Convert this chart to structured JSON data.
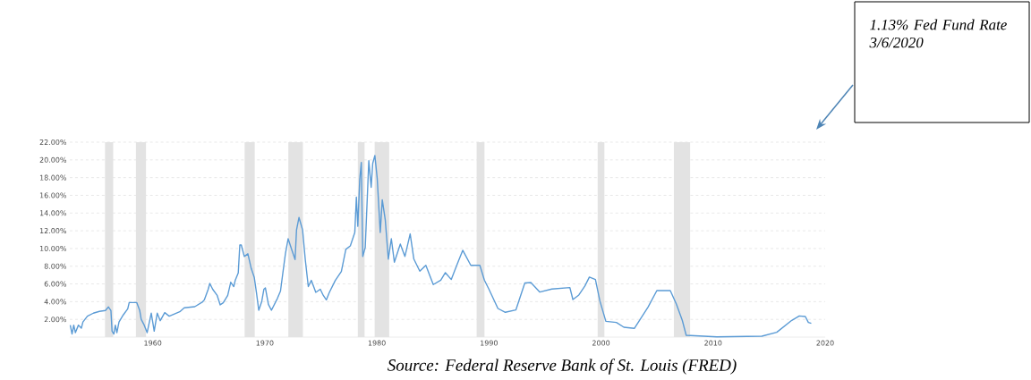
{
  "chart_data": {
    "type": "line",
    "x": [
      1952.64,
      1952.8,
      1952.95,
      1953.1,
      1953.37,
      1953.63,
      1953.77,
      1954.17,
      1954.7,
      1955.24,
      1955.78,
      1956.05,
      1956.27,
      1956.37,
      1956.53,
      1956.66,
      1956.8,
      1956.99,
      1957.37,
      1957.77,
      1957.9,
      1958.57,
      1958.84,
      1958.97,
      1959.24,
      1959.5,
      1959.64,
      1959.87,
      1960.13,
      1960.4,
      1960.67,
      1961.07,
      1961.47,
      1962.41,
      1962.81,
      1963.75,
      1964.42,
      1964.6,
      1964.95,
      1965.09,
      1965.35,
      1965.75,
      1966.02,
      1966.29,
      1966.69,
      1966.96,
      1967.23,
      1967.36,
      1967.63,
      1967.77,
      1967.9,
      1968.17,
      1968.49,
      1968.79,
      1969.06,
      1969.25,
      1969.46,
      1969.73,
      1969.92,
      1970.05,
      1970.32,
      1970.59,
      1971.13,
      1971.4,
      1971.61,
      1971.84,
      1972.08,
      1972.43,
      1972.7,
      1972.83,
      1973.05,
      1973.37,
      1973.61,
      1973.88,
      1974.15,
      1974.55,
      1974.95,
      1975.22,
      1975.49,
      1975.76,
      1976.29,
      1976.83,
      1977.23,
      1977.63,
      1978.03,
      1978.17,
      1978.3,
      1978.47,
      1978.61,
      1978.74,
      1978.96,
      1979.28,
      1979.49,
      1979.63,
      1979.82,
      1980.03,
      1980.3,
      1980.48,
      1980.75,
      1981.02,
      1981.29,
      1981.56,
      1982.09,
      1982.5,
      1982.97,
      1983.3,
      1983.83,
      1984.37,
      1985.03,
      1985.7,
      1986.11,
      1986.64,
      1987.18,
      1987.66,
      1988.38,
      1989.19,
      1989.59,
      1990.0,
      1990.8,
      1991.46,
      1992.4,
      1993.2,
      1993.74,
      1994.54,
      1995.61,
      1997.22,
      1997.49,
      1998.02,
      1998.56,
      1998.96,
      1999.5,
      1999.9,
      2000.43,
      2001.37,
      2002.04,
      2002.97,
      2004.2,
      2004.98,
      2006.18,
      2006.72,
      2007.25,
      2007.6,
      2010.33,
      2014.35,
      2015.68,
      2017.02,
      2017.69,
      2018.23,
      2018.5,
      2018.76
    ],
    "values": [
      1.35,
      0.34,
      1.35,
      0.5,
      1.35,
      1.0,
      1.7,
      2.36,
      2.7,
      2.9,
      3.0,
      3.4,
      3.0,
      0.67,
      0.34,
      1.35,
      0.5,
      1.7,
      2.5,
      3.2,
      3.9,
      3.9,
      3.0,
      2.0,
      1.35,
      0.5,
      1.35,
      2.7,
      0.67,
      2.7,
      1.85,
      2.76,
      2.36,
      2.86,
      3.3,
      3.43,
      3.94,
      4.2,
      5.4,
      6.06,
      5.4,
      4.7,
      3.64,
      3.87,
      4.7,
      6.2,
      5.7,
      6.4,
      7.24,
      10.4,
      10.4,
      9.1,
      9.4,
      7.74,
      6.73,
      5.05,
      3.03,
      4.04,
      5.4,
      5.56,
      3.7,
      3.03,
      4.38,
      5.2,
      7.24,
      9.43,
      11.1,
      9.76,
      8.75,
      12.1,
      13.5,
      12.1,
      8.75,
      5.7,
      6.4,
      5.05,
      5.4,
      4.7,
      4.2,
      5.05,
      6.4,
      7.4,
      9.9,
      10.3,
      11.8,
      15.8,
      12.5,
      17.8,
      19.7,
      9.1,
      10.1,
      19.9,
      16.9,
      19.6,
      20.5,
      17.9,
      11.8,
      15.5,
      13.2,
      8.8,
      11.1,
      8.45,
      10.5,
      9.1,
      11.65,
      8.8,
      7.44,
      8.1,
      5.93,
      6.43,
      7.27,
      6.5,
      8.28,
      9.8,
      8.1,
      8.1,
      6.43,
      5.4,
      3.23,
      2.8,
      3.06,
      6.1,
      6.16,
      5.08,
      5.42,
      5.59,
      4.24,
      4.75,
      5.76,
      6.77,
      6.5,
      4.07,
      1.78,
      1.65,
      1.11,
      0.98,
      3.4,
      5.25,
      5.25,
      3.74,
      1.89,
      0.2,
      0.03,
      0.1,
      0.54,
      1.89,
      2.39,
      2.32,
      1.65,
      1.55
    ],
    "color": "#5b9bd5",
    "xlim": [
      1952.6,
      2020
    ],
    "ylim": [
      0,
      22
    ],
    "xticks": [
      1960,
      1970,
      1980,
      1990,
      2000,
      2010,
      2020
    ],
    "yticks": [
      {
        "value": 2,
        "label": "2.00%"
      },
      {
        "value": 4,
        "label": "4.00%"
      },
      {
        "value": 6,
        "label": "6.00%"
      },
      {
        "value": 8,
        "label": "8.00%"
      },
      {
        "value": 10,
        "label": "10.00%"
      },
      {
        "value": 12,
        "label": "12.00%"
      },
      {
        "value": 14,
        "label": "14.00%"
      },
      {
        "value": 16,
        "label": "16.00%"
      },
      {
        "value": 18,
        "label": "18.00%"
      },
      {
        "value": 20,
        "label": "20.00%"
      },
      {
        "value": 22,
        "label": "22.00%"
      }
    ],
    "grid": "y",
    "bands": [
      {
        "axis": "x",
        "from": 1955.74,
        "to": 1956.47,
        "color": "#e3e3e3"
      },
      {
        "axis": "x",
        "from": 1958.5,
        "to": 1959.4,
        "color": "#e3e3e3"
      },
      {
        "axis": "x",
        "from": 1968.2,
        "to": 1969.1,
        "color": "#e3e3e3"
      },
      {
        "axis": "x",
        "from": 1972.1,
        "to": 1973.4,
        "color": "#e3e3e3"
      },
      {
        "axis": "x",
        "from": 1978.3,
        "to": 1978.9,
        "color": "#e3e3e3"
      },
      {
        "axis": "x",
        "from": 1979.8,
        "to": 1981.1,
        "color": "#e3e3e3"
      },
      {
        "axis": "x",
        "from": 1988.9,
        "to": 1989.6,
        "color": "#e3e3e3"
      },
      {
        "axis": "x",
        "from": 1999.7,
        "to": 2000.3,
        "color": "#e3e3e3"
      },
      {
        "axis": "x",
        "from": 2006.5,
        "to": 2007.95,
        "color": "#e3e3e3"
      }
    ],
    "annotations": [
      "1.13% Fed Fund Rate 3/6/2020",
      "Source:  Federal Reserve Bank of St. Louis (FRED)"
    ]
  }
}
